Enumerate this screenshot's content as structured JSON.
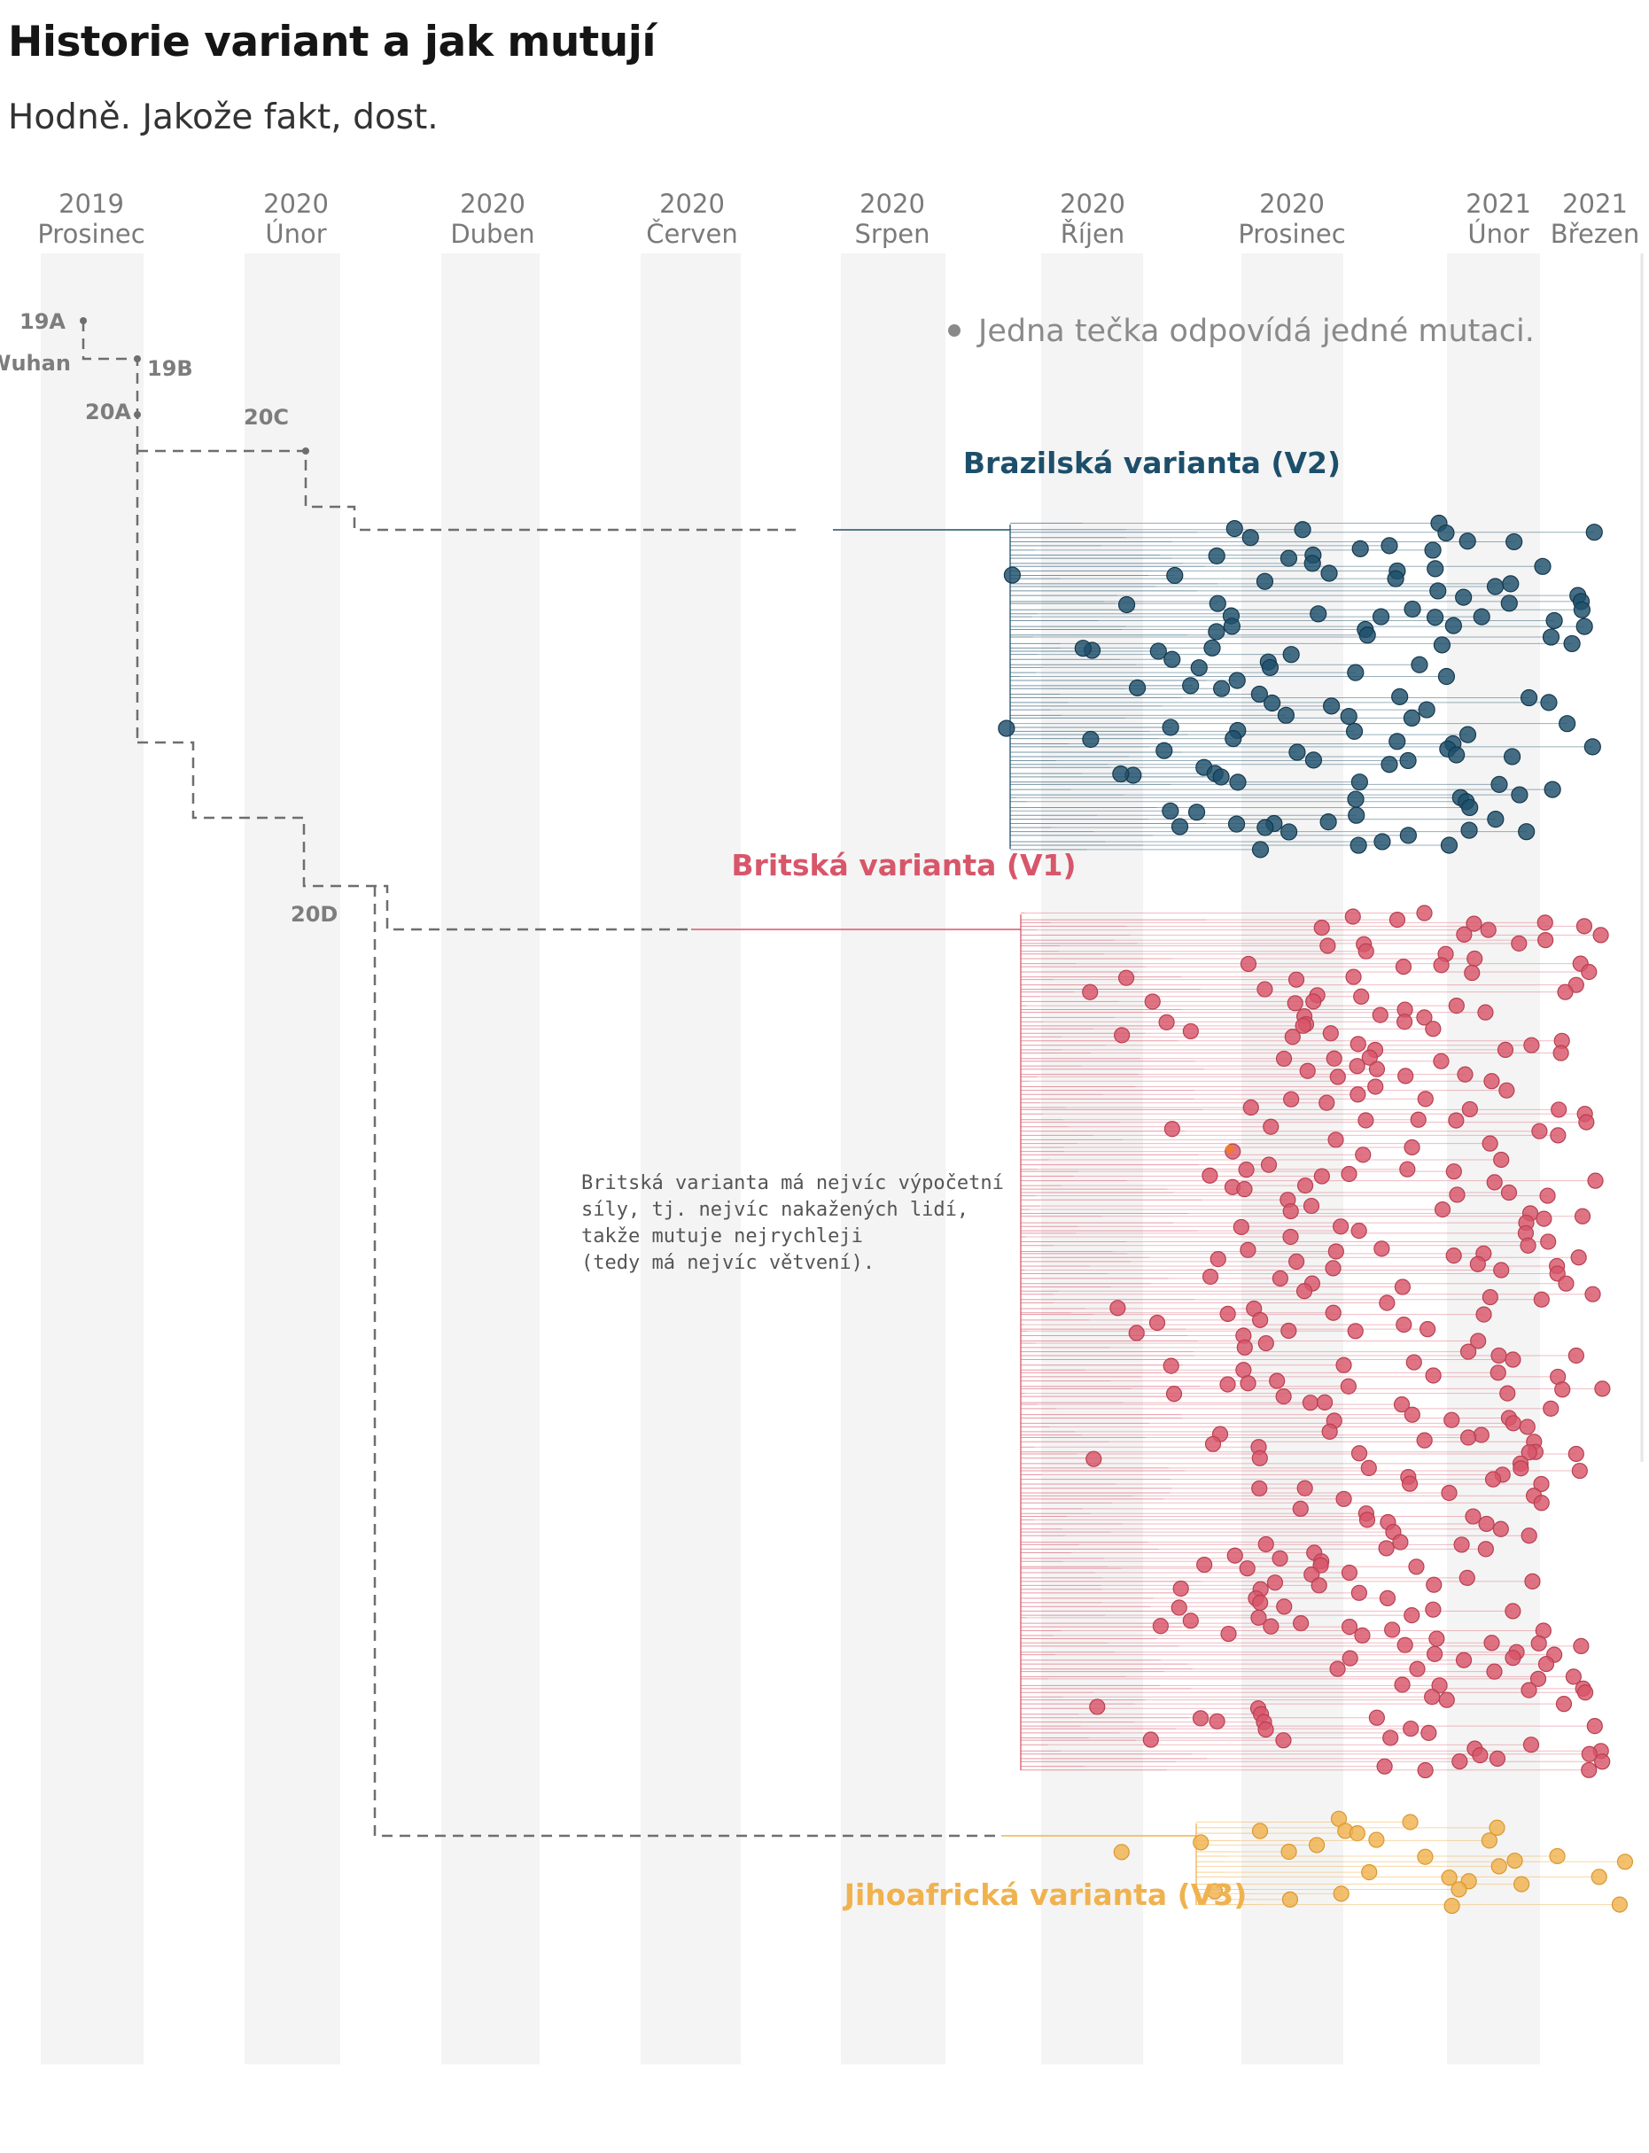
{
  "title": "Historie variant a jak mutují",
  "subtitle": "Hodně. Jakože fakt, dost.",
  "months": [
    {
      "year": "2019",
      "name": "Prosinec"
    },
    {
      "year": "2020",
      "name": "Únor"
    },
    {
      "year": "2020",
      "name": "Duben"
    },
    {
      "year": "2020",
      "name": "Červen"
    },
    {
      "year": "2020",
      "name": "Srpen"
    },
    {
      "year": "2020",
      "name": "Říjen"
    },
    {
      "year": "2020",
      "name": "Prosinec"
    },
    {
      "year": "2021",
      "name": "Únor"
    },
    {
      "year": "2021",
      "name": "Březen"
    }
  ],
  "clades": {
    "c19A": "19A",
    "wuhan": "Wuhan",
    "c19B": "19B",
    "c20A": "20A",
    "c20C": "20C",
    "c20D": "20D"
  },
  "legend": "Jedna tečka odpovídá jedné mutaci.",
  "variants": {
    "v2": {
      "label": "Brazilská varianta (V2)",
      "color": "#1d4f6b"
    },
    "v1": {
      "label": "Britská varianta (V1)",
      "color": "#d8566a"
    },
    "v3": {
      "label": "Jihoafrická varianta (V3)",
      "color": "#f0b24f"
    }
  },
  "note": [
    "Britská varianta má nejvíc výpočetní",
    "síly, tj. nejvíc nakažených lidí,",
    "takže mutuje nejrychleji",
    "(tedy má nejvíc větvení)."
  ],
  "colors": {
    "band": "#f4f4f4",
    "dashed": "#6e6e6e",
    "highlight": "#f07a30"
  }
}
